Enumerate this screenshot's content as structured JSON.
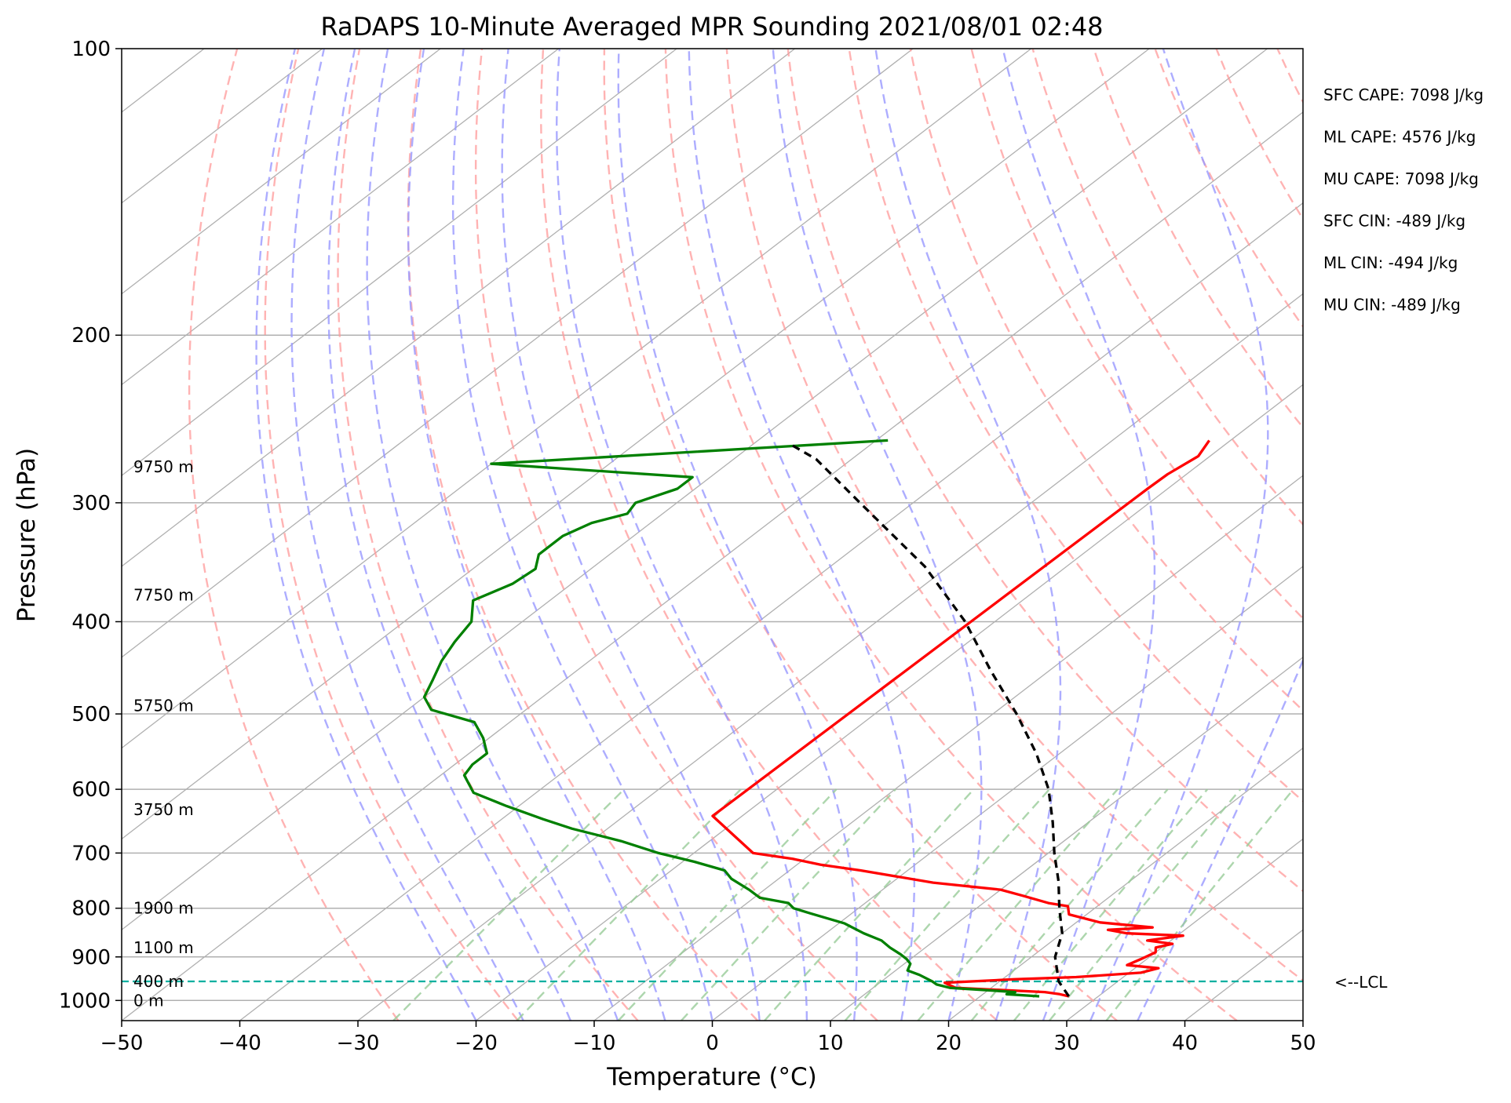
{
  "chart_data": {
    "type": "line",
    "subtype": "skew-T log-p sounding",
    "title": "RaDAPS 10-Minute Averaged MPR Sounding 2021/08/01 02:48",
    "xlabel": "Temperature (°C)",
    "ylabel": "Pressure (hPa)",
    "xlim": [
      -50,
      50
    ],
    "ylim": [
      1050,
      100
    ],
    "y_scale": "log",
    "x_ticks": [
      -50,
      -40,
      -30,
      -20,
      -10,
      0,
      10,
      20,
      30,
      40,
      50
    ],
    "y_ticks": [
      100,
      200,
      300,
      400,
      500,
      600,
      700,
      800,
      900,
      1000
    ],
    "grid": true,
    "height_labels": [
      {
        "text": "0 m",
        "pressure": 1000
      },
      {
        "text": "400 m",
        "pressure": 955
      },
      {
        "text": "1100 m",
        "pressure": 880
      },
      {
        "text": "1900 m",
        "pressure": 800
      },
      {
        "text": "3750 m",
        "pressure": 630
      },
      {
        "text": "5750 m",
        "pressure": 490
      },
      {
        "text": "7750 m",
        "pressure": 375
      },
      {
        "text": "9750 m",
        "pressure": 275
      }
    ],
    "series": [
      {
        "key": "temperature",
        "color": "#ff0000",
        "points": [
          [
            27.5,
            990
          ],
          [
            26.5,
            985
          ],
          [
            25.0,
            980
          ],
          [
            17.0,
            970
          ],
          [
            15.5,
            958
          ],
          [
            21.0,
            950
          ],
          [
            26.0,
            945
          ],
          [
            31.0,
            935
          ],
          [
            32.0,
            925
          ],
          [
            29.0,
            918
          ],
          [
            29.5,
            905
          ],
          [
            30.0,
            890
          ],
          [
            29.5,
            880
          ],
          [
            30.5,
            872
          ],
          [
            28.0,
            865
          ],
          [
            30.5,
            855
          ],
          [
            25.5,
            850
          ],
          [
            23.5,
            843
          ],
          [
            27.0,
            838
          ],
          [
            22.0,
            828
          ],
          [
            18.5,
            812
          ],
          [
            17.5,
            796
          ],
          [
            15.5,
            790
          ],
          [
            12.5,
            776
          ],
          [
            10.0,
            765
          ],
          [
            3.5,
            752
          ],
          [
            -4.0,
            730
          ],
          [
            -8.0,
            720
          ],
          [
            -11.0,
            710
          ],
          [
            -15.0,
            700
          ],
          [
            -22.5,
            640
          ],
          [
            -21.7,
            290
          ],
          [
            -21.6,
            280
          ],
          [
            -21.0,
            268
          ],
          [
            -21.8,
            258
          ]
        ]
      },
      {
        "key": "dewpoint",
        "color": "#008000",
        "points": [
          [
            25.0,
            990
          ],
          [
            22.0,
            985
          ],
          [
            22.5,
            980
          ],
          [
            16.5,
            970
          ],
          [
            15.0,
            962
          ],
          [
            14.3,
            955
          ],
          [
            12.5,
            940
          ],
          [
            11.0,
            930
          ],
          [
            10.5,
            915
          ],
          [
            9.7,
            905
          ],
          [
            8.7,
            895
          ],
          [
            7.0,
            880
          ],
          [
            5.5,
            865
          ],
          [
            3.2,
            850
          ],
          [
            0.5,
            830
          ],
          [
            -3.5,
            810
          ],
          [
            -5.5,
            800
          ],
          [
            -6.5,
            790
          ],
          [
            -9.5,
            780
          ],
          [
            -11.3,
            765
          ],
          [
            -14.0,
            745
          ],
          [
            -15.5,
            730
          ],
          [
            -19.0,
            715
          ],
          [
            -23.0,
            700
          ],
          [
            -27.5,
            680
          ],
          [
            -33.0,
            660
          ],
          [
            -36.5,
            645
          ],
          [
            -41.0,
            625
          ],
          [
            -45.3,
            605
          ],
          [
            -48.0,
            580
          ],
          [
            -48.5,
            565
          ],
          [
            -48.5,
            550
          ],
          [
            -50.5,
            530
          ],
          [
            -53.0,
            510
          ],
          [
            -58.0,
            495
          ],
          [
            -60.0,
            480
          ],
          [
            -61.2,
            460
          ],
          [
            -62.5,
            440
          ],
          [
            -63.5,
            420
          ],
          [
            -64.3,
            400
          ],
          [
            -66.5,
            380
          ],
          [
            -65.0,
            365
          ],
          [
            -64.7,
            352
          ],
          [
            -66.0,
            340
          ],
          [
            -66.0,
            325
          ],
          [
            -65.0,
            315
          ],
          [
            -63.0,
            308
          ],
          [
            -63.5,
            300
          ],
          [
            -61.5,
            290
          ],
          [
            -61.5,
            282
          ],
          [
            -80.0,
            273
          ],
          [
            -49.0,
            258
          ]
        ]
      },
      {
        "key": "parcel",
        "color": "#000000",
        "dashed": true,
        "points": [
          [
            27.5,
            990
          ],
          [
            25.0,
            955
          ],
          [
            22.0,
            900
          ],
          [
            20.0,
            850
          ],
          [
            17.0,
            800
          ],
          [
            14.0,
            750
          ],
          [
            10.5,
            700
          ],
          [
            7.0,
            650
          ],
          [
            3.0,
            600
          ],
          [
            -2.0,
            550
          ],
          [
            -8.0,
            500
          ],
          [
            -15.0,
            450
          ],
          [
            -22.5,
            400
          ],
          [
            -32.0,
            350
          ],
          [
            -44.5,
            300
          ],
          [
            -53.0,
            270
          ],
          [
            -57.0,
            260
          ]
        ]
      }
    ],
    "lcl": {
      "pressure": 955,
      "label": "<--LCL",
      "color": "#00b0a0"
    },
    "stats": [
      "SFC CAPE: 7098 J/kg",
      "ML CAPE: 4576 J/kg",
      "MU CAPE: 7098 J/kg",
      "SFC CIN: -489 J/kg",
      "ML CIN: -494 J/kg",
      "MU CIN: -489 J/kg"
    ],
    "colors": {
      "grid": "#b0b0b0",
      "dry_adiabat": "#ff9999",
      "moist_adiabat": "#9999ff",
      "mixing_ratio": "#99cc99"
    }
  }
}
